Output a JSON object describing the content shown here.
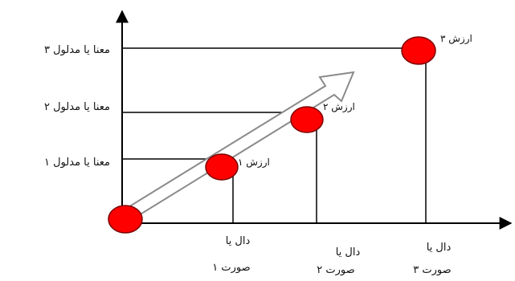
{
  "diagram": {
    "y_labels": [
      "معنا یا مدلول ۳",
      "معنا یا مدلول ۲",
      "معنا یا مدلول ۱"
    ],
    "x_labels": [
      {
        "line1": "دال یا",
        "line2": "صورت ۱"
      },
      {
        "line1": "دال یا",
        "line2": "صورت ۲"
      },
      {
        "line1": "دال یا",
        "line2": "صورت ۳"
      }
    ],
    "node_labels": [
      "ارزش ۱",
      "ارزش ۲",
      "ارزش ۳"
    ],
    "colors": {
      "node_fill": "#ff0000",
      "node_stroke": "#7a0000",
      "line": "#000000",
      "arrow_stroke": "#8a8a8a"
    }
  }
}
